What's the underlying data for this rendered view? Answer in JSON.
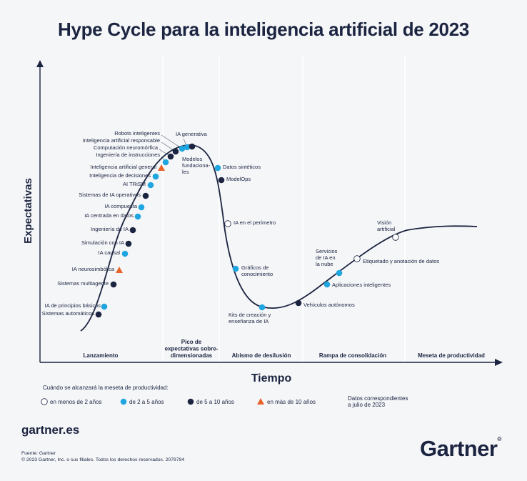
{
  "title": "Hype Cycle para la inteligencia artificial de 2023",
  "colors": {
    "dark": "#1b2440",
    "light_blue": "#1fa5df",
    "orange": "#e8622c",
    "white": "#ffffff",
    "divider": "#ffffff",
    "background": "#f5f6f8"
  },
  "chart_data": {
    "type": "scatter",
    "title": "Hype Cycle para la inteligencia artificial de 2023",
    "xlabel": "Tiempo",
    "ylabel": "Expectativas",
    "phases": [
      "Lanzamiento",
      "Pico de expectativas sobre-dimensionadas",
      "Abismo de desilusión",
      "Rampa de consolidación",
      "Meseta de productividad"
    ],
    "legend_title": "Cuándo se alcanzará la meseta de productividad:",
    "legend": [
      {
        "key": "lt2",
        "label": "en menos de 2 años",
        "marker": "circle-white"
      },
      {
        "key": "2to5",
        "label": "de 2 a 5 años",
        "marker": "circle-lightblue"
      },
      {
        "key": "5to10",
        "label": "de 5 a 10 años",
        "marker": "circle-dark"
      },
      {
        "key": "gt10",
        "label": "en más de 10 años",
        "marker": "triangle-orange"
      }
    ],
    "note": "Datos correspondientes a julio de 2023",
    "points": [
      {
        "name": "Sistemas automáticos",
        "phase": "Lanzamiento",
        "category": "5to10"
      },
      {
        "name": "IA de principios básicos",
        "phase": "Lanzamiento",
        "category": "2to5"
      },
      {
        "name": "Sistemas multiagente",
        "phase": "Lanzamiento",
        "category": "5to10"
      },
      {
        "name": "IA neurosimbólica",
        "phase": "Lanzamiento",
        "category": "gt10"
      },
      {
        "name": "IA causal",
        "phase": "Lanzamiento",
        "category": "2to5"
      },
      {
        "name": "Simulación con IA",
        "phase": "Lanzamiento",
        "category": "5to10"
      },
      {
        "name": "Ingeniería de IA",
        "phase": "Lanzamiento",
        "category": "5to10"
      },
      {
        "name": "IA centrada en datos",
        "phase": "Lanzamiento",
        "category": "2to5"
      },
      {
        "name": "IA compuesta",
        "phase": "Lanzamiento",
        "category": "2to5"
      },
      {
        "name": "Sistemas de IA operativos",
        "phase": "Lanzamiento",
        "category": "5to10"
      },
      {
        "name": "AI TRiSM",
        "phase": "Lanzamiento",
        "category": "2to5"
      },
      {
        "name": "Inteligencia de decisiones",
        "phase": "Lanzamiento",
        "category": "2to5"
      },
      {
        "name": "Inteligencia artificial general",
        "phase": "Lanzamiento",
        "category": "gt10"
      },
      {
        "name": "Ingeniería de instrucciones",
        "phase": "Pico de expectativas sobre-dimensionadas",
        "category": "2to5"
      },
      {
        "name": "Computación neuromórfica",
        "phase": "Pico de expectativas sobre-dimensionadas",
        "category": "5to10"
      },
      {
        "name": "Inteligencia artificial responsable",
        "phase": "Pico de expectativas sobre-dimensionadas",
        "category": "5to10"
      },
      {
        "name": "Robots inteligentes",
        "phase": "Pico de expectativas sobre-dimensionadas",
        "category": "2to5"
      },
      {
        "name": "IA generativa",
        "phase": "Pico de expectativas sobre-dimensionadas",
        "category": "2to5"
      },
      {
        "name": "Modelos fundacionales",
        "phase": "Pico de expectativas sobre-dimensionadas",
        "category": "5to10"
      },
      {
        "name": "Datos sintéticos",
        "phase": "Abismo de desilusión",
        "category": "2to5"
      },
      {
        "name": "ModelOps",
        "phase": "Abismo de desilusión",
        "category": "5to10"
      },
      {
        "name": "IA en el perímetro",
        "phase": "Abismo de desilusión",
        "category": "lt2"
      },
      {
        "name": "Gráficos de conocimiento",
        "phase": "Abismo de desilusión",
        "category": "2to5"
      },
      {
        "name": "Kits de creación y enseñanza de IA",
        "phase": "Abismo de desilusión",
        "category": "2to5"
      },
      {
        "name": "Vehículos autónomos",
        "phase": "Rampa de consolidación",
        "category": "5to10"
      },
      {
        "name": "Aplicaciones inteligentes",
        "phase": "Rampa de consolidación",
        "category": "2to5"
      },
      {
        "name": "Servicios de IA en la nube",
        "phase": "Rampa de consolidación",
        "category": "2to5"
      },
      {
        "name": "Etiquetado y anotación de datos",
        "phase": "Rampa de consolidación",
        "category": "lt2"
      },
      {
        "name": "Visión artificial",
        "phase": "Rampa de consolidación",
        "category": "lt2"
      }
    ]
  },
  "footer": {
    "url": "gartner.es",
    "source_line1": "Fuente: Gartner",
    "source_line2": "© 2023 Gartner, Inc. o sus filiales. Todos los derechos reservados. 2079794",
    "logo": "Gartner",
    "logo_mark": "®"
  }
}
